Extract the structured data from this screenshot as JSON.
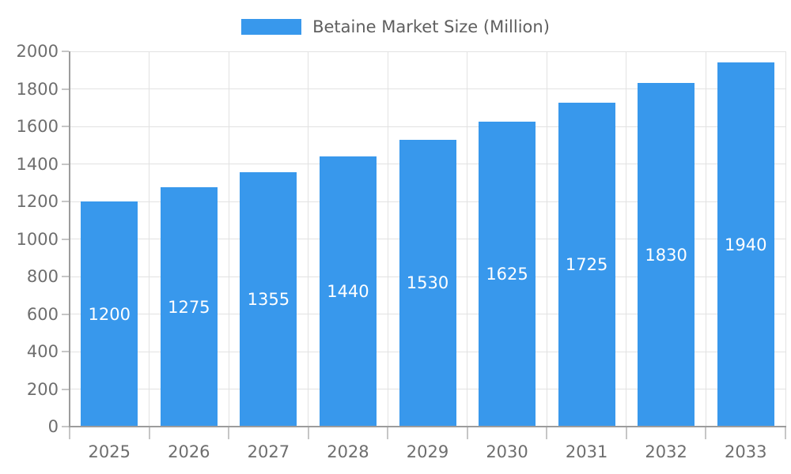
{
  "chart_data": {
    "type": "bar",
    "title": "Betaine Market Size (Million)",
    "categories": [
      "2025",
      "2026",
      "2027",
      "2028",
      "2029",
      "2030",
      "2031",
      "2032",
      "2033"
    ],
    "values": [
      1200,
      1275,
      1355,
      1440,
      1530,
      1625,
      1725,
      1830,
      1940
    ],
    "xlabel": "",
    "ylabel": "",
    "ylim": [
      0,
      2000
    ],
    "yticks": [
      0,
      200,
      400,
      600,
      800,
      1000,
      1200,
      1400,
      1600,
      1800,
      2000
    ],
    "grid": "on",
    "legend_position": "top",
    "value_labels": "inside-center",
    "colors": {
      "bar": "#3898EC",
      "value_label": "#FFFFFF",
      "grid": "#E2E2E2",
      "axis": "#9C9C9C",
      "tick": "#C6C6C6",
      "axis_text": "#6E6E6E",
      "legend_text": "#5F5F5F",
      "background": "#FFFFFF"
    }
  }
}
